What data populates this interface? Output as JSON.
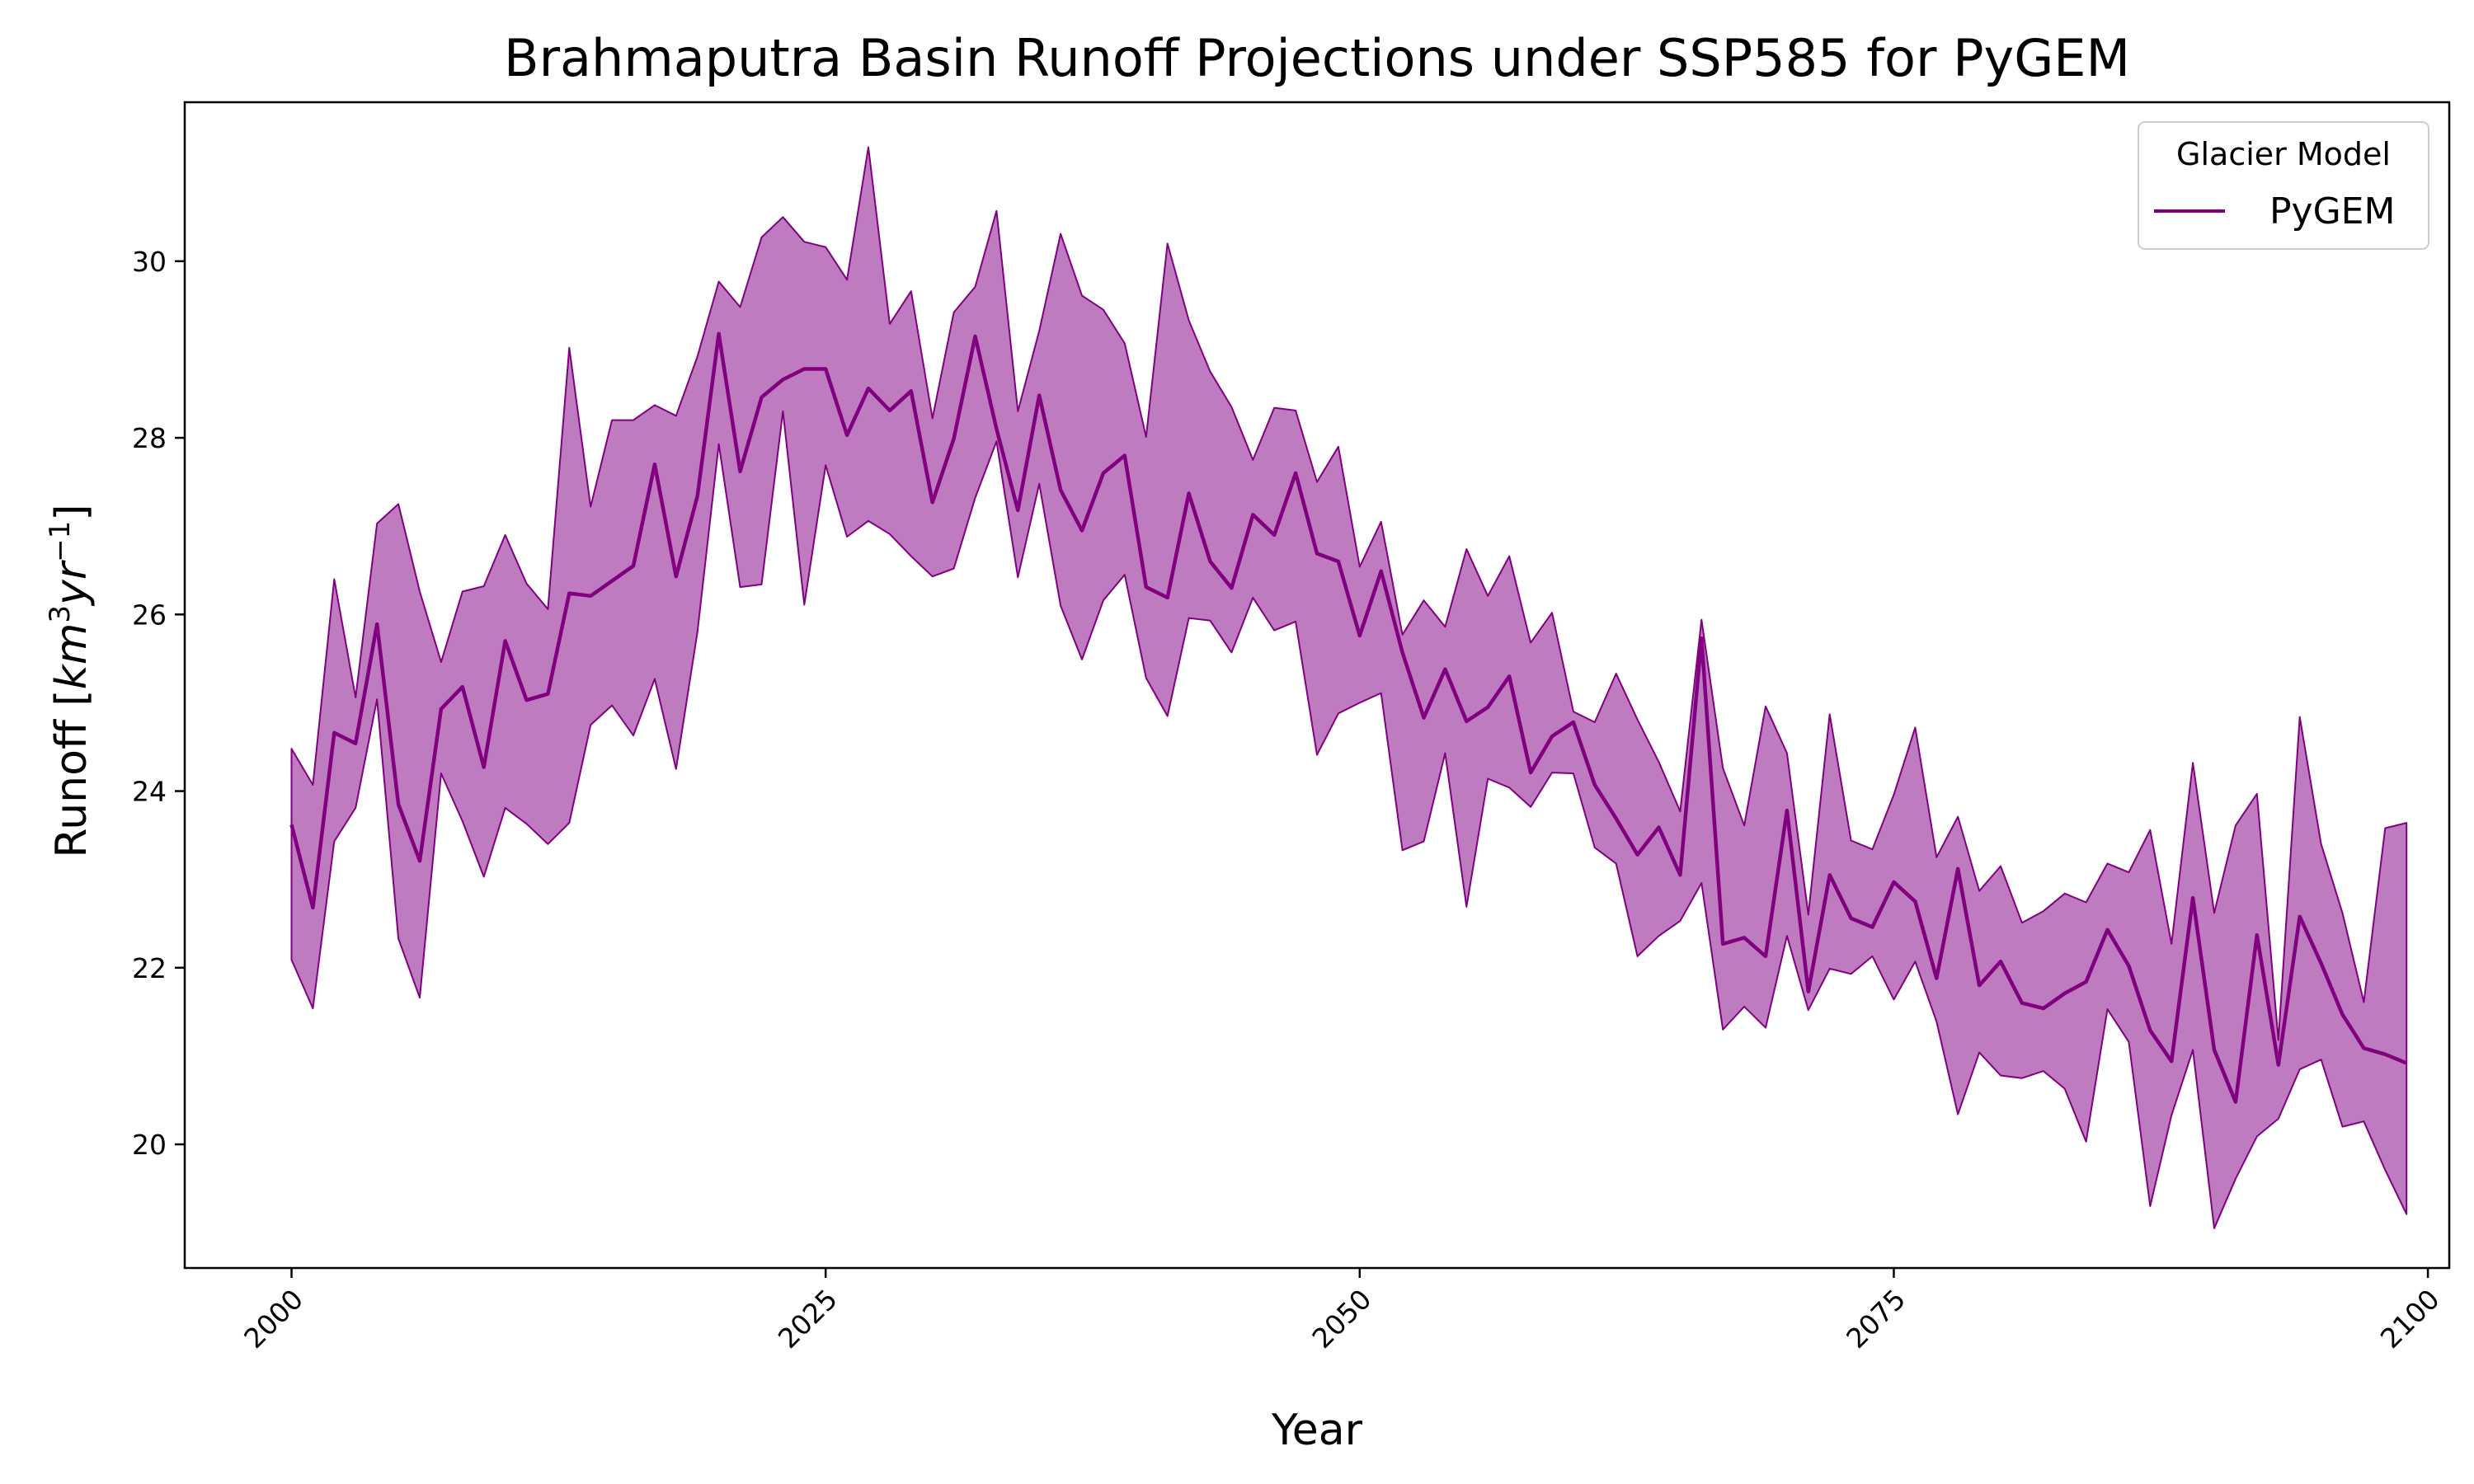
{
  "chart_data": {
    "type": "line",
    "title": "Brahmaputra Basin Runoff Projections under SSP585 for PyGEM",
    "xlabel": "Year",
    "ylabel": "Runoff [km³yr⁻¹]",
    "ylabel_parts": {
      "prefix": "Runoff [",
      "var1": "km",
      "exp1": "3",
      "var2": "yr",
      "exp2": "−1",
      "suffix": "]"
    },
    "xlim": [
      1995,
      2101
    ],
    "ylim": [
      18.6,
      31.8
    ],
    "xticks": [
      2000,
      2025,
      2050,
      2075,
      2100
    ],
    "yticks": [
      20,
      22,
      24,
      26,
      28,
      30
    ],
    "grid": false,
    "legend": {
      "title": "Glacier Model",
      "placement": "top-right"
    },
    "colors": {
      "line": "#800080",
      "band": "#bf7bbf"
    },
    "series": [
      {
        "name": "PyGEM",
        "x": [
          2000,
          2001,
          2002,
          2003,
          2004,
          2005,
          2006,
          2007,
          2008,
          2009,
          2010,
          2011,
          2012,
          2013,
          2014,
          2015,
          2016,
          2017,
          2018,
          2019,
          2020,
          2021,
          2022,
          2023,
          2024,
          2025,
          2026,
          2027,
          2028,
          2029,
          2030,
          2031,
          2032,
          2033,
          2034,
          2035,
          2036,
          2037,
          2038,
          2039,
          2040,
          2041,
          2042,
          2043,
          2044,
          2045,
          2046,
          2047,
          2048,
          2049,
          2050,
          2051,
          2052,
          2053,
          2054,
          2055,
          2056,
          2057,
          2058,
          2059,
          2060,
          2061,
          2062,
          2063,
          2064,
          2065,
          2066,
          2067,
          2068,
          2069,
          2070,
          2071,
          2072,
          2073,
          2074,
          2075,
          2076,
          2077,
          2078,
          2079,
          2080,
          2081,
          2082,
          2083,
          2084,
          2085,
          2086,
          2087,
          2088,
          2089,
          2090,
          2091,
          2092,
          2093,
          2094,
          2095,
          2096,
          2097,
          2098,
          2099
        ],
        "mean": [
          23.62,
          22.68,
          24.66,
          24.54,
          25.89,
          23.85,
          23.21,
          24.93,
          25.18,
          24.27,
          25.7,
          25.03,
          25.1,
          26.24,
          26.21,
          26.38,
          26.55,
          27.7,
          26.43,
          27.34,
          29.18,
          27.62,
          28.46,
          28.66,
          28.78,
          28.78,
          28.03,
          28.56,
          28.31,
          28.53,
          27.27,
          27.99,
          29.15,
          28.1,
          27.18,
          28.48,
          27.41,
          26.95,
          27.6,
          27.8,
          26.31,
          26.19,
          27.37,
          26.6,
          26.3,
          27.13,
          26.9,
          27.6,
          26.69,
          26.6,
          25.76,
          26.49,
          25.57,
          24.83,
          25.38,
          24.79,
          24.95,
          25.3,
          24.21,
          24.62,
          24.78,
          24.07,
          23.69,
          23.28,
          23.59,
          23.05,
          25.73,
          22.27,
          22.34,
          22.13,
          23.78,
          21.73,
          23.05,
          22.56,
          22.46,
          22.97,
          22.75,
          21.88,
          23.12,
          21.8,
          22.07,
          21.6,
          21.54,
          21.71,
          21.84,
          22.43,
          22.02,
          21.29,
          20.94,
          22.79,
          21.07,
          20.48,
          22.37,
          20.9,
          22.58,
          22.05,
          21.47,
          21.09,
          21.02,
          20.92
        ],
        "upper": [
          24.48,
          24.07,
          26.4,
          25.06,
          27.03,
          27.25,
          26.26,
          25.46,
          26.26,
          26.32,
          26.9,
          26.35,
          26.06,
          29.02,
          27.22,
          28.2,
          28.2,
          28.37,
          28.25,
          28.92,
          29.77,
          29.48,
          30.27,
          30.5,
          30.22,
          30.16,
          29.79,
          31.29,
          29.29,
          29.66,
          28.22,
          29.42,
          29.71,
          30.57,
          28.3,
          29.21,
          30.31,
          29.61,
          29.45,
          29.07,
          28.01,
          30.2,
          29.33,
          28.75,
          28.35,
          27.75,
          28.34,
          28.31,
          27.5,
          27.9,
          26.54,
          27.05,
          25.77,
          26.16,
          25.86,
          26.74,
          26.21,
          26.66,
          25.68,
          26.02,
          24.9,
          24.78,
          25.33,
          24.81,
          24.33,
          23.77,
          25.94,
          24.26,
          23.61,
          24.96,
          24.43,
          22.6,
          24.87,
          23.44,
          23.34,
          23.96,
          24.72,
          23.25,
          23.71,
          22.87,
          23.15,
          22.51,
          22.64,
          22.84,
          22.74,
          23.18,
          23.08,
          23.56,
          22.27,
          24.32,
          22.62,
          23.61,
          23.97,
          21.18,
          24.84,
          23.4,
          22.62,
          21.61,
          23.58,
          23.64
        ],
        "lower": [
          22.09,
          21.54,
          23.43,
          23.81,
          25.04,
          22.33,
          21.66,
          24.2,
          23.66,
          23.03,
          23.81,
          23.63,
          23.4,
          23.64,
          24.75,
          24.97,
          24.63,
          25.27,
          24.25,
          25.8,
          27.93,
          26.31,
          26.34,
          28.3,
          26.11,
          27.69,
          26.88,
          27.06,
          26.91,
          26.66,
          26.43,
          26.52,
          27.32,
          27.96,
          26.42,
          27.48,
          26.1,
          25.49,
          26.16,
          26.45,
          25.28,
          24.85,
          25.96,
          25.93,
          25.57,
          26.19,
          25.82,
          25.92,
          24.41,
          24.88,
          25.0,
          25.11,
          23.33,
          23.43,
          24.43,
          22.69,
          24.14,
          24.04,
          23.82,
          24.21,
          24.2,
          23.36,
          23.18,
          22.13,
          22.36,
          22.53,
          22.96,
          21.3,
          21.56,
          21.32,
          22.36,
          21.52,
          21.99,
          21.93,
          22.13,
          21.64,
          22.07,
          21.39,
          20.34,
          21.04,
          20.78,
          20.75,
          20.83,
          20.63,
          20.03,
          21.53,
          21.16,
          19.3,
          20.33,
          21.07,
          19.05,
          19.61,
          20.09,
          20.29,
          20.85,
          20.96,
          20.2,
          20.26,
          19.71,
          19.21
        ]
      }
    ]
  }
}
